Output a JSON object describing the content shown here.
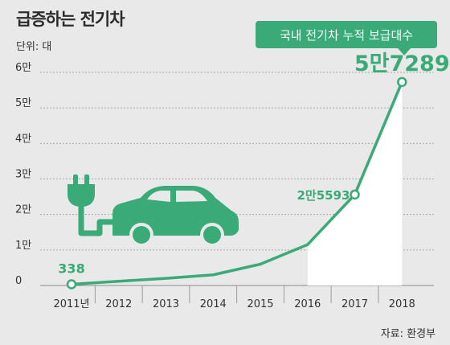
{
  "title": "급증하는 전기차",
  "unit_label": "단위: 대",
  "source": "자료: 환경부",
  "colors": {
    "accent": "#3aaa78",
    "background": "#e9e9ea",
    "grid": "#a9a9a9",
    "area": "#ffffff",
    "text": "#333333"
  },
  "chart_data": {
    "type": "line",
    "title": "급증하는 전기차",
    "ylabel": "",
    "xlabel": "",
    "categories": [
      "2011년",
      "2012",
      "2013",
      "2014",
      "2015",
      "2016",
      "2017",
      "2018"
    ],
    "series": [
      {
        "name": "국내 전기차 누적 보급대수",
        "values": [
          338,
          1200,
          2000,
          3000,
          6000,
          11500,
          25593,
          57289
        ]
      }
    ],
    "y_ticks": [
      {
        "value": 0,
        "label": "0"
      },
      {
        "value": 10000,
        "label": "1만"
      },
      {
        "value": 20000,
        "label": "2만"
      },
      {
        "value": 30000,
        "label": "3만"
      },
      {
        "value": 40000,
        "label": "4만"
      },
      {
        "value": 50000,
        "label": "5만"
      },
      {
        "value": 60000,
        "label": "6만"
      }
    ],
    "ylim": [
      0,
      60000
    ],
    "grid": "horizontal-dashed",
    "legend": "callout-top-right",
    "data_labels": [
      {
        "index": 0,
        "text": "338"
      },
      {
        "index": 6,
        "text": "2만5593"
      },
      {
        "index": 7,
        "text": "5만7289"
      }
    ],
    "marked_points": [
      0,
      6,
      7
    ]
  },
  "illustration": {
    "icons": [
      "plug-icon",
      "car-icon"
    ]
  }
}
